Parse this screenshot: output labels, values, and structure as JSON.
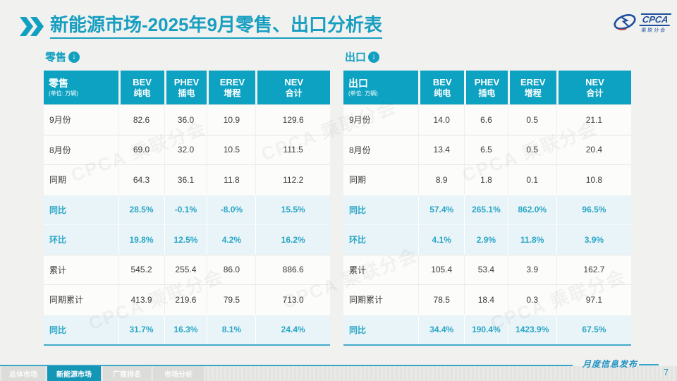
{
  "header": {
    "title_main": "新能源市场",
    "title_suffix": "-2025年9月零售、出口分析表",
    "logo_text": "CPCA",
    "logo_subtext": "乘联分会"
  },
  "retail": {
    "section_label": "零售",
    "table_title": "零售",
    "unit": "(单位: 万辆)",
    "columns": [
      {
        "line1": "BEV",
        "line2": "纯电"
      },
      {
        "line1": "PHEV",
        "line2": "插电"
      },
      {
        "line1": "EREV",
        "line2": "增程"
      },
      {
        "line1": "NEV",
        "line2": "合计"
      }
    ],
    "rows": [
      {
        "label": "9月份",
        "values": [
          "82.6",
          "36.0",
          "10.9",
          "129.6"
        ],
        "highlight": false
      },
      {
        "label": "8月份",
        "values": [
          "69.0",
          "32.0",
          "10.5",
          "111.5"
        ],
        "highlight": false
      },
      {
        "label": "同期",
        "values": [
          "64.3",
          "36.1",
          "11.8",
          "112.2"
        ],
        "highlight": false
      },
      {
        "label": "同比",
        "values": [
          "28.5%",
          "-0.1%",
          "-8.0%",
          "15.5%"
        ],
        "highlight": true
      },
      {
        "label": "环比",
        "values": [
          "19.8%",
          "12.5%",
          "4.2%",
          "16.2%"
        ],
        "highlight": true
      },
      {
        "label": "累计",
        "values": [
          "545.2",
          "255.4",
          "86.0",
          "886.6"
        ],
        "highlight": false
      },
      {
        "label": "同期累计",
        "values": [
          "413.9",
          "219.6",
          "79.5",
          "713.0"
        ],
        "highlight": false
      },
      {
        "label": "同比",
        "values": [
          "31.7%",
          "16.3%",
          "8.1%",
          "24.4%"
        ],
        "highlight": true
      }
    ]
  },
  "export": {
    "section_label": "出口",
    "table_title": "出口",
    "unit": "(单位: 万辆)",
    "columns": [
      {
        "line1": "BEV",
        "line2": "纯电"
      },
      {
        "line1": "PHEV",
        "line2": "插电"
      },
      {
        "line1": "EREV",
        "line2": "增程"
      },
      {
        "line1": "NEV",
        "line2": "合计"
      }
    ],
    "rows": [
      {
        "label": "9月份",
        "values": [
          "14.0",
          "6.6",
          "0.5",
          "21.1"
        ],
        "highlight": false
      },
      {
        "label": "8月份",
        "values": [
          "13.4",
          "6.5",
          "0.5",
          "20.4"
        ],
        "highlight": false
      },
      {
        "label": "同期",
        "values": [
          "8.9",
          "1.8",
          "0.1",
          "10.8"
        ],
        "highlight": false
      },
      {
        "label": "同比",
        "values": [
          "57.4%",
          "265.1%",
          "862.0%",
          "96.5%"
        ],
        "highlight": true
      },
      {
        "label": "环比",
        "values": [
          "4.1%",
          "2.9%",
          "11.8%",
          "3.9%"
        ],
        "highlight": true
      },
      {
        "label": "累计",
        "values": [
          "105.4",
          "53.4",
          "3.9",
          "162.7"
        ],
        "highlight": false
      },
      {
        "label": "同期累计",
        "values": [
          "78.5",
          "18.4",
          "0.3",
          "97.1"
        ],
        "highlight": false
      },
      {
        "label": "同比",
        "values": [
          "34.4%",
          "190.4%",
          "1423.9%",
          "67.5%"
        ],
        "highlight": true
      }
    ]
  },
  "footer": {
    "tabs": [
      {
        "label": "总体市场",
        "active": false
      },
      {
        "label": "新能源市场",
        "active": true
      },
      {
        "label": "厂商排名",
        "active": false
      },
      {
        "label": "市场分析",
        "active": false
      }
    ],
    "publish_label": "月度信息发布",
    "page_number": "7"
  },
  "watermark_text": "CPCA 乘联分会",
  "colors": {
    "accent_teal": "#12a0c0",
    "table_header_bg": "#0da2c2",
    "highlight_row_bg": "#e9f4f8",
    "highlight_text": "#2aa6c6",
    "body_text": "#3b3b3b",
    "logo_blue": "#1d4f9f",
    "footer_active_tab": "#1496b6"
  }
}
